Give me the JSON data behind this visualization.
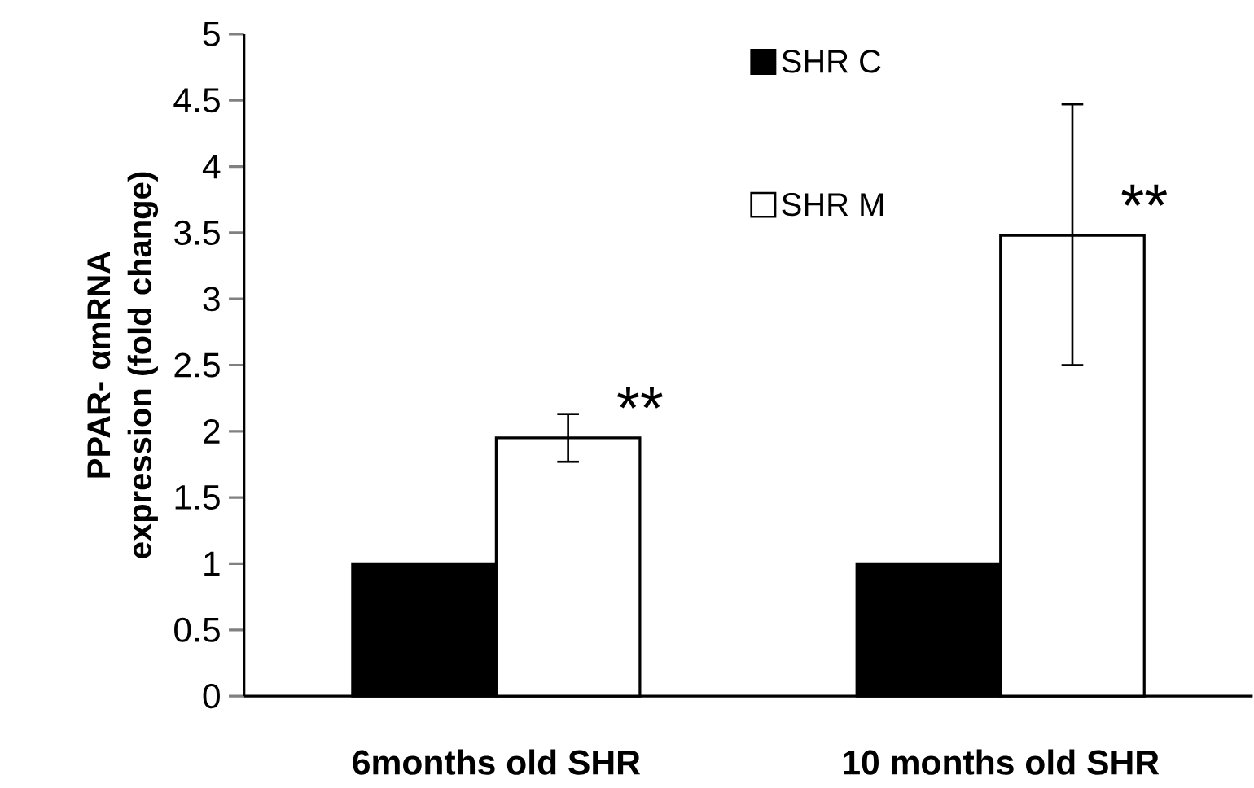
{
  "chart_data": {
    "type": "bar",
    "ylabel": "PPAR- αmRNA expression (fold change)",
    "categories": [
      "6months old SHR",
      "10 months old SHR"
    ],
    "series": [
      {
        "name": "SHR C",
        "color": "#000000",
        "values": [
          1,
          1
        ]
      },
      {
        "name": "SHR M",
        "color": "#ffffff",
        "values": [
          1.95,
          3.48
        ],
        "errors": [
          [
            1.77,
            2.13
          ],
          [
            2.5,
            4.47
          ]
        ]
      }
    ],
    "ylim": [
      0,
      5
    ],
    "yticks": [
      0,
      0.5,
      1,
      1.5,
      2,
      2.5,
      3,
      3.5,
      4,
      4.5,
      5
    ],
    "legend": "top",
    "annotations": [
      "**",
      "**"
    ]
  }
}
